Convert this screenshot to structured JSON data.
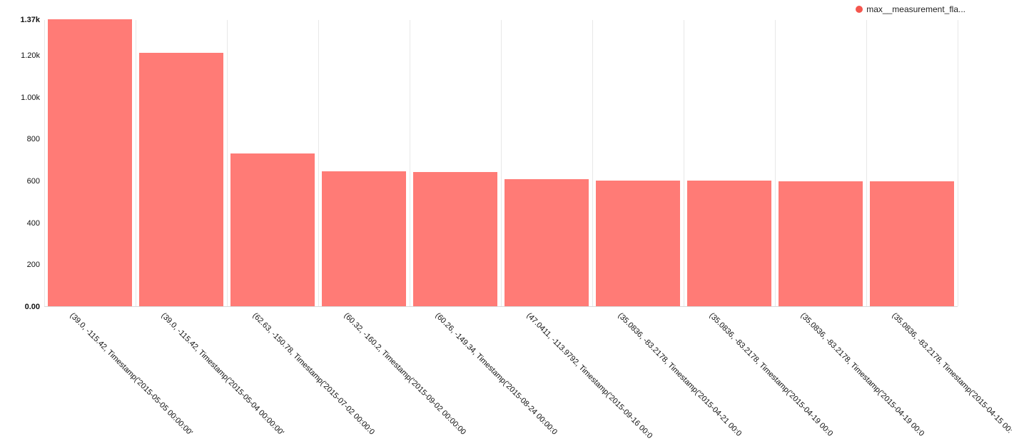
{
  "legend": {
    "series_label": "max__measurement_fla...",
    "marker_color": "#f4564e"
  },
  "chart_data": {
    "type": "bar",
    "title": "",
    "xlabel": "",
    "ylabel": "",
    "legend_position": "top-right",
    "grid": "vertical",
    "bar_color": "#ff7b76",
    "gridline_color": "#e8e8e8",
    "axis_line_color": "#d9d9d9",
    "ylim": [
      0,
      1370
    ],
    "categories": [
      "(39.0, -115.42, Timestamp('2015-05-05 00:00:00'",
      "(39.0, -115.42, Timestamp('2015-05-04 00:00:00'",
      "(62.63, -150.78, Timestamp('2015-07-02 00:00:0",
      "(60.32, -160.2, Timestamp('2015-09-02 00:00:00",
      "(60.26, -149.34, Timestamp('2015-08-24 00:00:0",
      "(47.0411, -113.9792, Timestamp('2015-09-16 00:0",
      "(35.0836, -83.2178, Timestamp('2015-04-21 00:0",
      "(35.0836, -83.2178, Timestamp('2015-04-19 00:0",
      "(35.0836, -83.2178, Timestamp('2015-04-19 00:0",
      "(35.0836, -83.2178, Timestamp('2015-04-15 00:"
    ],
    "series": [
      {
        "name": "max__measurement_fla...",
        "values": [
          1370,
          1210,
          730,
          645,
          640,
          606,
          601,
          599,
          598,
          597
        ]
      }
    ],
    "y_ticks": [
      {
        "value": 1370,
        "label": "1.37k",
        "bold": true
      },
      {
        "value": 1200,
        "label": "1.20k",
        "bold": false
      },
      {
        "value": 1000,
        "label": "1.00k",
        "bold": false
      },
      {
        "value": 800,
        "label": "800",
        "bold": false
      },
      {
        "value": 600,
        "label": "600",
        "bold": false
      },
      {
        "value": 400,
        "label": "400",
        "bold": false
      },
      {
        "value": 200,
        "label": "200",
        "bold": false
      },
      {
        "value": 0,
        "label": "0.00",
        "bold": true
      }
    ]
  }
}
